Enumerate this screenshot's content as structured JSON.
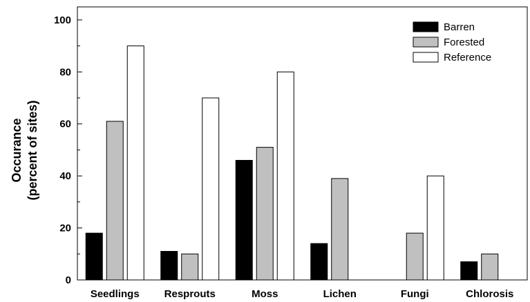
{
  "chart_data": {
    "type": "bar",
    "categories": [
      "Seedlings",
      "Resprouts",
      "Moss",
      "Lichen",
      "Fungi",
      "Chlorosis"
    ],
    "series": [
      {
        "name": "Barren",
        "color": "#000000",
        "values": [
          18,
          11,
          46,
          14,
          0,
          7
        ]
      },
      {
        "name": "Forested",
        "color": "#c0c0c0",
        "values": [
          61,
          10,
          51,
          39,
          18,
          10
        ]
      },
      {
        "name": "Reference",
        "color": "#ffffff",
        "values": [
          90,
          70,
          80,
          0,
          40,
          0
        ]
      }
    ],
    "ylabel_line1": "Occurance",
    "ylabel_line2": "(percent of sites)",
    "xlabel": "",
    "ylim": [
      0,
      105
    ],
    "yticks": [
      0,
      20,
      40,
      60,
      80,
      100
    ],
    "grid": false,
    "legend_position": "top-right"
  }
}
